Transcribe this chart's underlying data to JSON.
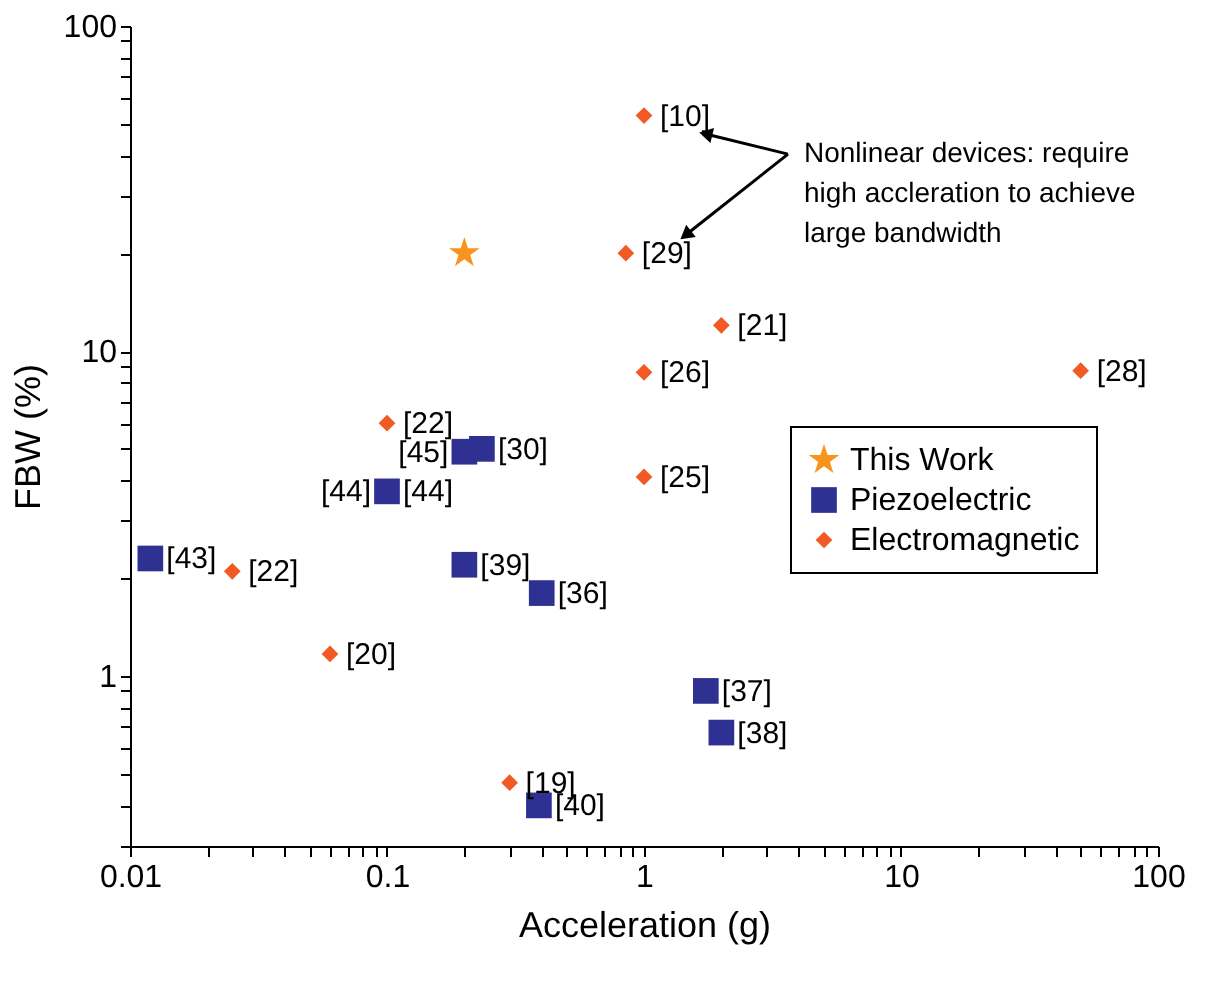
{
  "chart_data": {
    "type": "scatter",
    "xlabel": "Acceleration (g)",
    "ylabel": "FBW (%)",
    "log": "xy",
    "grid": false,
    "legend": "right",
    "xlim": [
      0.01,
      100
    ],
    "ylim": [
      0.3,
      100
    ],
    "xticks": [
      0.01,
      {
        "value": 0.02,
        "label": null
      },
      {
        "value": 0.03,
        "label": null
      },
      {
        "value": 0.04,
        "label": null
      },
      {
        "value": 0.05,
        "label": null
      },
      {
        "value": 0.06,
        "label": null
      },
      {
        "value": 0.07,
        "label": null
      },
      {
        "value": 0.08,
        "label": null
      },
      {
        "value": 0.09,
        "label": null
      },
      0.1,
      {
        "value": 0.2,
        "label": null
      },
      {
        "value": 0.3,
        "label": null
      },
      {
        "value": 0.4,
        "label": null
      },
      {
        "value": 0.5,
        "label": null
      },
      {
        "value": 0.6,
        "label": null
      },
      {
        "value": 0.7,
        "label": null
      },
      {
        "value": 0.8,
        "label": null
      },
      {
        "value": 0.9,
        "label": null
      },
      1,
      {
        "value": 2,
        "label": null
      },
      {
        "value": 3,
        "label": null
      },
      {
        "value": 4,
        "label": null
      },
      {
        "value": 5,
        "label": null
      },
      {
        "value": 6,
        "label": null
      },
      {
        "value": 7,
        "label": null
      },
      {
        "value": 8,
        "label": null
      },
      {
        "value": 9,
        "label": null
      },
      10,
      {
        "value": 20,
        "label": null
      },
      {
        "value": 30,
        "label": null
      },
      {
        "value": 40,
        "label": null
      },
      {
        "value": 50,
        "label": null
      },
      {
        "value": 60,
        "label": null
      },
      {
        "value": 70,
        "label": null
      },
      {
        "value": 80,
        "label": null
      },
      {
        "value": 90,
        "label": null
      },
      100
    ],
    "yticks": [
      {
        "value": 0.3,
        "label": null
      },
      {
        "value": 0.4,
        "label": null
      },
      {
        "value": 0.5,
        "label": null
      },
      {
        "value": 0.6,
        "label": null
      },
      {
        "value": 0.7,
        "label": null
      },
      {
        "value": 0.8,
        "label": null
      },
      {
        "value": 0.9,
        "label": null
      },
      1,
      {
        "value": 2,
        "label": null
      },
      {
        "value": 3,
        "label": null
      },
      {
        "value": 4,
        "label": null
      },
      {
        "value": 5,
        "label": null
      },
      {
        "value": 6,
        "label": null
      },
      {
        "value": 7,
        "label": null
      },
      {
        "value": 8,
        "label": null
      },
      {
        "value": 9,
        "label": null
      },
      10,
      {
        "value": 20,
        "label": null
      },
      {
        "value": 30,
        "label": null
      },
      {
        "value": 40,
        "label": null
      },
      {
        "value": 50,
        "label": null
      },
      {
        "value": 60,
        "label": null
      },
      {
        "value": 70,
        "label": null
      },
      {
        "value": 80,
        "label": null
      },
      {
        "value": 90,
        "label": null
      },
      100
    ],
    "series": [
      {
        "name": "This Work",
        "color": "#f7941d",
        "marker": "star",
        "x": [
          0.2
        ],
        "values": [
          20
        ]
      },
      {
        "name": "Piezoelectric",
        "color": "#2e3192",
        "marker": "square",
        "x": [
          0.012,
          0.2,
          0.234,
          0.1,
          0.2,
          0.4,
          1.74,
          2.0,
          0.39
        ],
        "values": [
          2.3,
          4.9,
          5.0,
          3.7,
          2.2,
          1.8,
          0.9,
          0.67,
          0.4
        ]
      },
      {
        "name": "Electromagnetic",
        "color": "#f15a24",
        "marker": "diamond",
        "x": [
          1,
          0.85,
          2.0,
          1,
          50,
          1,
          0.1,
          0.025,
          0.06,
          0.3
        ],
        "values": [
          53,
          20,
          12,
          8.6,
          8.7,
          4.1,
          6.0,
          2.1,
          1.17,
          0.47
        ]
      }
    ],
    "annotations": [
      {
        "text": "[43]",
        "x": 0.012,
        "y": 2.3
      },
      {
        "text": "[45]",
        "x": 0.2,
        "y": 4.9
      },
      {
        "text": "[30]",
        "x": 0.234,
        "y": 5.0
      },
      {
        "text": "[44]",
        "x": 0.1,
        "y": 3.7
      },
      {
        "text": "[44]",
        "x": 0.1,
        "y": 3.7
      },
      {
        "text": "[39]",
        "x": 0.2,
        "y": 2.2
      },
      {
        "text": "[36]",
        "x": 0.4,
        "y": 1.8
      },
      {
        "text": "[37]",
        "x": 1.74,
        "y": 0.9
      },
      {
        "text": "[38]",
        "x": 2.0,
        "y": 0.67
      },
      {
        "text": "[40]",
        "x": 0.39,
        "y": 0.4
      },
      {
        "text": "[10]",
        "x": 1,
        "y": 53
      },
      {
        "text": "[29]",
        "x": 0.85,
        "y": 20
      },
      {
        "text": "[21]",
        "x": 2.0,
        "y": 12
      },
      {
        "text": "[26]",
        "x": 1,
        "y": 8.6
      },
      {
        "text": "[28]",
        "x": 50,
        "y": 8.7
      },
      {
        "text": "[25]",
        "x": 1,
        "y": 4.1
      },
      {
        "text": "[22]",
        "x": 0.1,
        "y": 6.0
      },
      {
        "text": "[22]",
        "x": 0.025,
        "y": 2.1
      },
      {
        "text": "[20]",
        "x": 0.06,
        "y": 1.17
      },
      {
        "text": "[19]",
        "x": 0.3,
        "y": 0.47
      },
      "Nonlinear devices: require\nhigh accleration to achieve\nlarge bandwidth"
    ]
  }
}
